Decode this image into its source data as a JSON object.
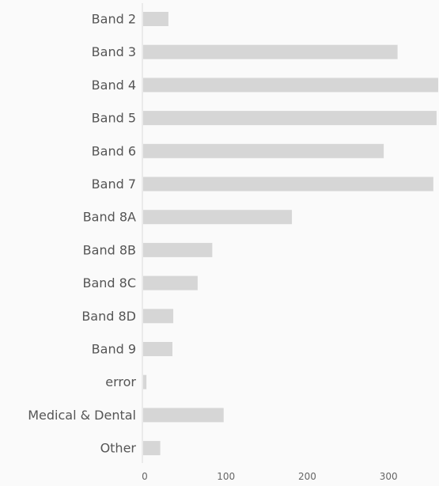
{
  "chart_data": {
    "type": "bar",
    "orientation": "horizontal",
    "categories": [
      "Band 2",
      "Band 3",
      "Band 4",
      "Band 5",
      "Band 6",
      "Band 7",
      "Band 8A",
      "Band 8B",
      "Band 8C",
      "Band 8D",
      "Band 9",
      "error",
      "Medical & Dental",
      "Other"
    ],
    "values": [
      32,
      314,
      364,
      362,
      297,
      358,
      184,
      86,
      68,
      38,
      37,
      5,
      100,
      22
    ],
    "title": "",
    "xlabel": "",
    "ylabel": "",
    "xlim": [
      0,
      365
    ],
    "xticks": [
      0,
      100,
      200,
      300
    ],
    "grid": false,
    "colors": {
      "bar": "#d6d6d6",
      "axis": "#d9d9d9",
      "label": "#555555",
      "background": "#fafafa"
    }
  }
}
